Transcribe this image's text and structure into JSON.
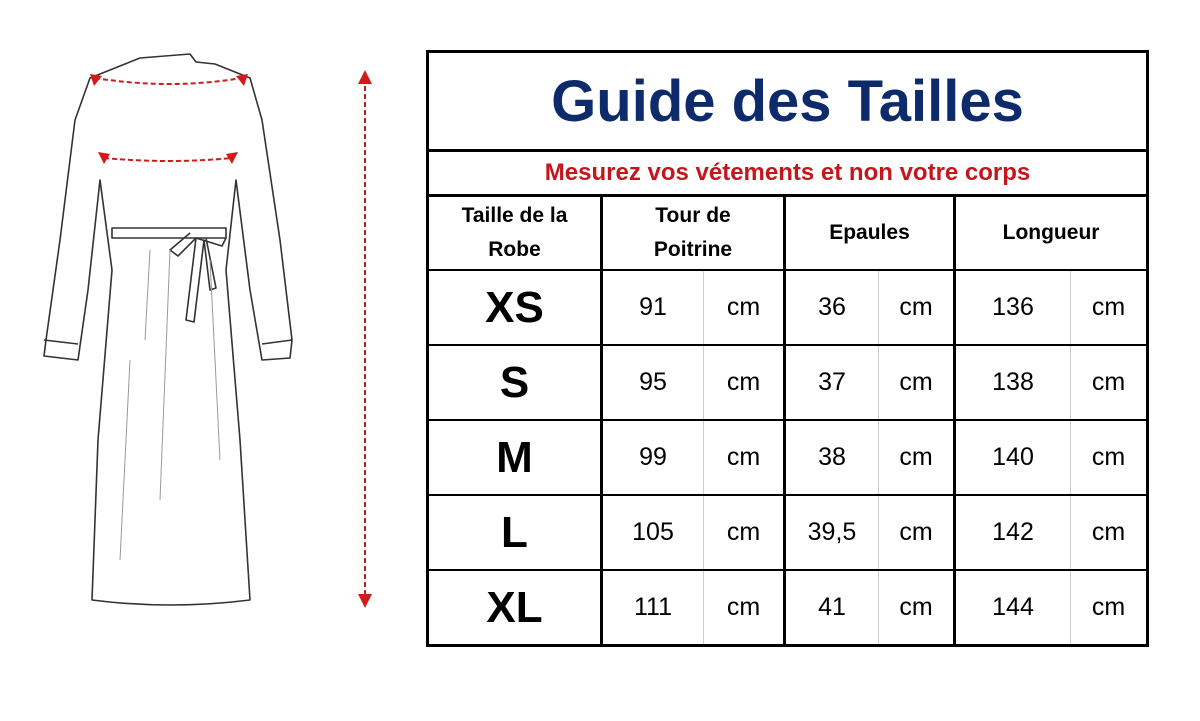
{
  "title": "Guide des Tailles",
  "subtitle": "Mesurez vos vétements et non votre corps",
  "headers": {
    "size": [
      "Taille de la",
      "Robe"
    ],
    "chest": [
      "Tour de",
      "Poitrine"
    ],
    "shoulders": "Epaules",
    "length": "Longueur"
  },
  "unit": "cm",
  "rows": [
    {
      "size": "XS",
      "chest": "91",
      "shoulders": "36",
      "length": "136"
    },
    {
      "size": "S",
      "chest": "95",
      "shoulders": "37",
      "length": "138"
    },
    {
      "size": "M",
      "chest": "99",
      "shoulders": "38",
      "length": "140"
    },
    {
      "size": "L",
      "chest": "105",
      "shoulders": "39,5",
      "length": "142"
    },
    {
      "size": "XL",
      "chest": "111",
      "shoulders": "41",
      "length": "144"
    }
  ],
  "colors": {
    "title": "#0d2a6b",
    "subtitle": "#c4161c",
    "measure_lines": "#d11a1a"
  },
  "illustration": "dress-back-view-with-measurement-arrows"
}
